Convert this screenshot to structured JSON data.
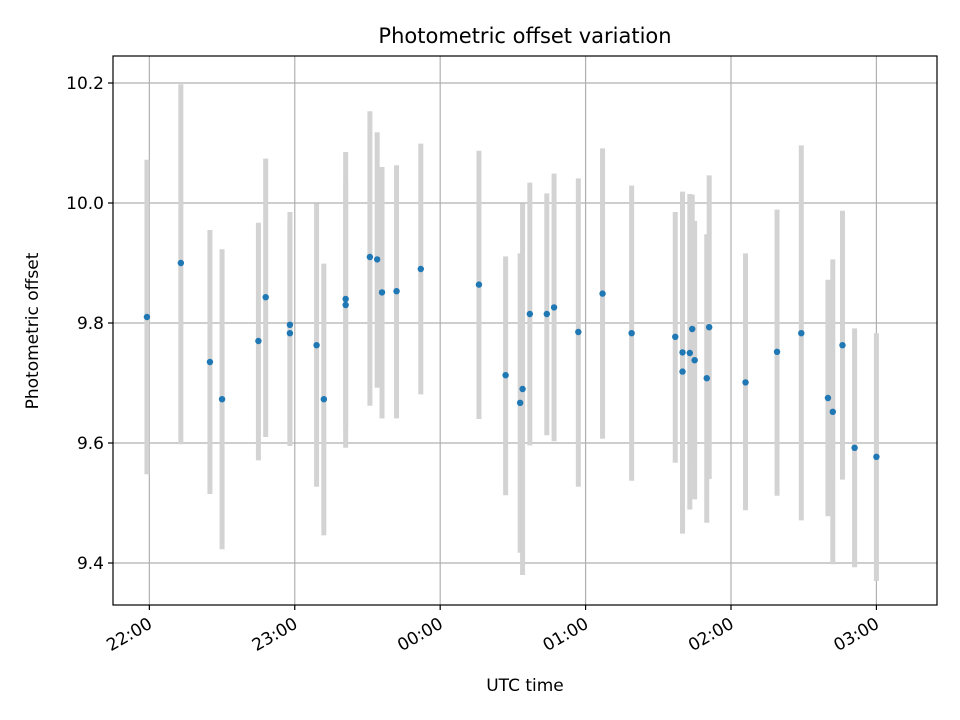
{
  "chart_data": {
    "type": "scatter",
    "title": "Photometric offset variation",
    "xlabel": "UTC time",
    "ylabel": "Photometric offset",
    "x_axis_kind": "time",
    "xlim": [
      "21:45",
      "03:25"
    ],
    "ylim": [
      9.33,
      10.245
    ],
    "x_ticks": [
      "22:00",
      "23:00",
      "00:00",
      "01:00",
      "02:00",
      "03:00"
    ],
    "y_ticks": [
      9.4,
      9.6,
      9.8,
      10.0,
      10.2
    ],
    "y_tick_labels": [
      "9.4",
      "9.6",
      "9.8",
      "10.0",
      "10.2"
    ],
    "grid": true,
    "legend": "none",
    "colors": {
      "point": "#1f77b4",
      "errorbar": "#d3d3d3",
      "grid": "#b0b0b0"
    },
    "series": [
      {
        "x": [
          "21:59",
          "22:13",
          "22:25",
          "22:30",
          "22:45",
          "22:48",
          "22:58",
          "22:58",
          "23:09",
          "23:12",
          "23:21",
          "23:21",
          "23:31",
          "23:34",
          "23:36",
          "23:42",
          "23:52",
          "00:16",
          "00:27",
          "00:33",
          "00:34",
          "00:37",
          "00:44",
          "00:47",
          "00:57",
          "01:07",
          "01:19",
          "01:37",
          "01:40",
          "01:40",
          "01:43",
          "01:44",
          "01:45",
          "01:50",
          "01:51",
          "02:06",
          "02:19",
          "02:29",
          "02:40",
          "02:42",
          "02:46",
          "02:51",
          "03:00"
        ],
        "y": [
          9.81,
          9.9,
          9.735,
          9.673,
          9.77,
          9.843,
          9.797,
          9.783,
          9.763,
          9.673,
          9.84,
          9.83,
          9.91,
          9.906,
          9.851,
          9.853,
          9.89,
          9.864,
          9.713,
          9.667,
          9.69,
          9.815,
          9.815,
          9.826,
          9.785,
          9.849,
          9.783,
          9.777,
          9.719,
          9.751,
          9.75,
          9.79,
          9.738,
          9.708,
          9.793,
          9.701,
          9.752,
          9.783,
          9.675,
          9.652,
          9.763,
          9.592,
          9.577
        ],
        "y_lower": [
          9.548,
          9.598,
          9.515,
          9.423,
          9.571,
          9.61,
          9.595,
          9.605,
          9.527,
          9.446,
          9.592,
          9.622,
          9.662,
          9.692,
          9.641,
          9.641,
          9.681,
          9.64,
          9.513,
          9.417,
          9.38,
          9.596,
          9.613,
          9.603,
          9.527,
          9.607,
          9.537,
          9.567,
          9.449,
          9.485,
          9.489,
          9.565,
          9.506,
          9.467,
          9.54,
          9.488,
          9.512,
          9.471,
          9.478,
          9.398,
          9.539,
          9.393,
          9.37
        ],
        "y_upper": [
          10.072,
          10.198,
          9.955,
          9.923,
          9.967,
          10.074,
          9.985,
          9.972,
          9.999,
          9.899,
          10.085,
          10.035,
          10.153,
          10.118,
          10.06,
          10.063,
          10.099,
          10.087,
          9.911,
          9.916,
          9.999,
          10.034,
          10.016,
          10.049,
          10.041,
          10.091,
          10.029,
          9.985,
          10.019,
          10.016,
          10.015,
          10.014,
          9.97,
          9.948,
          10.046,
          9.916,
          9.989,
          10.096,
          9.872,
          9.906,
          9.987,
          9.791,
          9.783
        ]
      }
    ]
  }
}
